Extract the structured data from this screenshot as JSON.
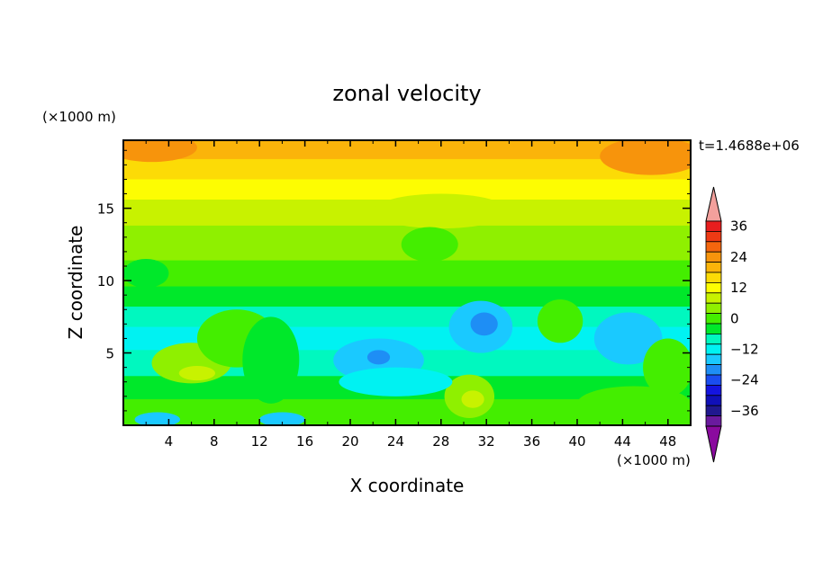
{
  "chart_data": {
    "type": "heatmap",
    "title": "zonal velocity",
    "xlabel": "X coordinate",
    "ylabel": "Z coordinate",
    "x_unit": "(×1000 m)",
    "y_unit": "(×1000 m)",
    "time_label": "t=1.4688e+06",
    "xlim": [
      0,
      50
    ],
    "ylim": [
      0,
      19.7
    ],
    "x_ticks": [
      "4",
      "8",
      "12",
      "16",
      "20",
      "24",
      "28",
      "32",
      "36",
      "40",
      "44",
      "48"
    ],
    "y_ticks": [
      "5",
      "10",
      "15"
    ],
    "colorbar": {
      "ticks": [
        "36",
        "24",
        "12",
        "0",
        "−12",
        "−24",
        "−36"
      ],
      "levels_top_to_bottom": [
        {
          "value": 42,
          "color": "#f3a09c"
        },
        {
          "value": 36,
          "color": "#e81e1e"
        },
        {
          "value": 32,
          "color": "#ee3a14"
        },
        {
          "value": 28,
          "color": "#f4660e"
        },
        {
          "value": 24,
          "color": "#f7940c"
        },
        {
          "value": 20,
          "color": "#fbb40a"
        },
        {
          "value": 16,
          "color": "#fcdb06"
        },
        {
          "value": 12,
          "color": "#fdfd02"
        },
        {
          "value": 8,
          "color": "#c8f200"
        },
        {
          "value": 4,
          "color": "#8ff000"
        },
        {
          "value": 0,
          "color": "#44ee00"
        },
        {
          "value": -4,
          "color": "#00e82a"
        },
        {
          "value": -8,
          "color": "#00f8bf"
        },
        {
          "value": -12,
          "color": "#00f2f2"
        },
        {
          "value": -16,
          "color": "#1ac9ff"
        },
        {
          "value": -20,
          "color": "#1e8ef5"
        },
        {
          "value": -24,
          "color": "#1a4df0"
        },
        {
          "value": -28,
          "color": "#1414e0"
        },
        {
          "value": -32,
          "color": "#1010b8"
        },
        {
          "value": -36,
          "color": "#20188f"
        },
        {
          "value": -40,
          "color": "#6a1a9e"
        },
        {
          "value": -44,
          "color": "#8a0a9e"
        }
      ]
    },
    "field_bands_top_to_bottom": [
      {
        "z_top": 19.7,
        "z_bottom": 18.4,
        "value": 20
      },
      {
        "z_top": 18.4,
        "z_bottom": 17.0,
        "value": 16
      },
      {
        "z_top": 17.0,
        "z_bottom": 15.6,
        "value": 12
      },
      {
        "z_top": 15.6,
        "z_bottom": 13.8,
        "value": 8
      },
      {
        "z_top": 13.8,
        "z_bottom": 11.4,
        "value": 4
      },
      {
        "z_top": 11.4,
        "z_bottom": 9.6,
        "value": 0
      },
      {
        "z_top": 9.6,
        "z_bottom": 8.2,
        "value": -4
      },
      {
        "z_top": 8.2,
        "z_bottom": 6.8,
        "value": -8
      },
      {
        "z_top": 6.8,
        "z_bottom": 5.2,
        "value": -12
      },
      {
        "z_top": 5.2,
        "z_bottom": 3.4,
        "value": -8
      },
      {
        "z_top": 3.4,
        "z_bottom": 1.8,
        "value": -4
      },
      {
        "z_top": 1.8,
        "z_bottom": 0.0,
        "value": 0
      }
    ],
    "field_features": [
      {
        "x": 2.5,
        "z": 19.2,
        "rx": 4.0,
        "rz": 1.0,
        "value": 24
      },
      {
        "x": 46.5,
        "z": 18.6,
        "rx": 4.5,
        "rz": 1.3,
        "value": 24
      },
      {
        "x": 28.0,
        "z": 14.8,
        "rx": 6.0,
        "rz": 1.2,
        "value": 8
      },
      {
        "x": 27.0,
        "z": 12.5,
        "rx": 2.5,
        "rz": 1.2,
        "value": 0
      },
      {
        "x": 6.0,
        "z": 4.3,
        "rx": 3.5,
        "rz": 1.4,
        "value": 4
      },
      {
        "x": 6.5,
        "z": 3.6,
        "rx": 1.6,
        "rz": 0.5,
        "value": 8
      },
      {
        "x": 10.0,
        "z": 6.0,
        "rx": 3.5,
        "rz": 2.0,
        "value": 0
      },
      {
        "x": 13.0,
        "z": 4.5,
        "rx": 2.5,
        "rz": 3.0,
        "value": -4
      },
      {
        "x": 30.5,
        "z": 2.0,
        "rx": 2.2,
        "rz": 1.5,
        "value": 4
      },
      {
        "x": 30.8,
        "z": 1.8,
        "rx": 1.0,
        "rz": 0.6,
        "value": 8
      },
      {
        "x": 31.5,
        "z": 6.8,
        "rx": 2.8,
        "rz": 1.8,
        "value": -16
      },
      {
        "x": 31.8,
        "z": 7.0,
        "rx": 1.2,
        "rz": 0.8,
        "value": -20
      },
      {
        "x": 22.5,
        "z": 4.5,
        "rx": 4.0,
        "rz": 1.5,
        "value": -16
      },
      {
        "x": 22.5,
        "z": 4.7,
        "rx": 1.0,
        "rz": 0.5,
        "value": -20
      },
      {
        "x": 24.0,
        "z": 3.0,
        "rx": 5.0,
        "rz": 1.0,
        "value": -12
      },
      {
        "x": 38.5,
        "z": 7.2,
        "rx": 2.0,
        "rz": 1.5,
        "value": 0
      },
      {
        "x": 44.5,
        "z": 6.0,
        "rx": 3.0,
        "rz": 1.8,
        "value": -16
      },
      {
        "x": 48.0,
        "z": 4.0,
        "rx": 2.2,
        "rz": 2.0,
        "value": 0
      },
      {
        "x": 14.0,
        "z": 0.4,
        "rx": 2.0,
        "rz": 0.5,
        "value": -16
      },
      {
        "x": 3.0,
        "z": 0.4,
        "rx": 2.0,
        "rz": 0.5,
        "value": -16
      },
      {
        "x": 45.0,
        "z": 1.5,
        "rx": 5.0,
        "rz": 1.2,
        "value": 0
      },
      {
        "x": 2.0,
        "z": 10.5,
        "rx": 2.0,
        "rz": 1.0,
        "value": -4
      }
    ]
  }
}
